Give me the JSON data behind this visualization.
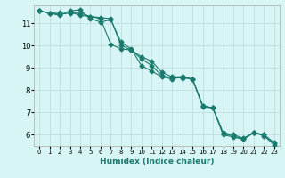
{
  "xlabel": "Humidex (Indice chaleur)",
  "bg_color": "#d8f5f5",
  "grid_color": "#c0dede",
  "line_color": "#1a7a6e",
  "xlim": [
    -0.5,
    23.5
  ],
  "ylim": [
    5.5,
    11.8
  ],
  "yticks": [
    6,
    7,
    8,
    9,
    10,
    11
  ],
  "xticks": [
    0,
    1,
    2,
    3,
    4,
    5,
    6,
    7,
    8,
    9,
    10,
    11,
    12,
    13,
    14,
    15,
    16,
    17,
    18,
    19,
    20,
    21,
    22,
    23
  ],
  "series1_x": [
    0,
    1,
    2,
    3,
    4,
    5,
    6,
    7,
    8,
    9,
    10,
    11,
    12,
    13,
    14,
    15,
    16,
    17,
    18,
    19,
    20,
    21,
    22,
    23
  ],
  "series1_y": [
    11.55,
    11.45,
    11.5,
    11.5,
    11.35,
    11.3,
    11.25,
    11.2,
    10.0,
    9.8,
    9.5,
    9.3,
    8.8,
    8.6,
    8.6,
    8.5,
    7.3,
    7.2,
    6.0,
    5.9,
    5.8,
    6.1,
    6.0,
    5.6
  ],
  "series2_x": [
    0,
    1,
    2,
    3,
    4,
    5,
    6,
    7,
    8,
    9,
    10,
    11,
    12,
    13,
    14,
    15,
    16,
    17,
    18,
    19,
    20,
    21,
    22,
    23
  ],
  "series2_y": [
    11.55,
    11.45,
    11.4,
    11.45,
    11.45,
    11.3,
    11.2,
    10.05,
    9.85,
    9.8,
    9.4,
    9.1,
    8.65,
    8.55,
    8.55,
    8.5,
    7.3,
    7.2,
    6.1,
    6.0,
    5.85,
    6.1,
    6.0,
    5.65
  ],
  "series3_x": [
    0,
    1,
    2,
    3,
    4,
    5,
    6,
    7,
    8,
    9,
    10,
    11,
    12,
    13,
    14,
    15,
    16,
    17,
    18,
    19,
    20,
    21,
    22,
    23
  ],
  "series3_y": [
    11.55,
    11.45,
    11.35,
    11.55,
    11.6,
    11.2,
    11.05,
    11.15,
    10.15,
    9.85,
    9.1,
    8.85,
    8.6,
    8.5,
    8.6,
    8.5,
    7.25,
    7.2,
    6.05,
    5.95,
    5.8,
    6.1,
    5.95,
    5.55
  ]
}
